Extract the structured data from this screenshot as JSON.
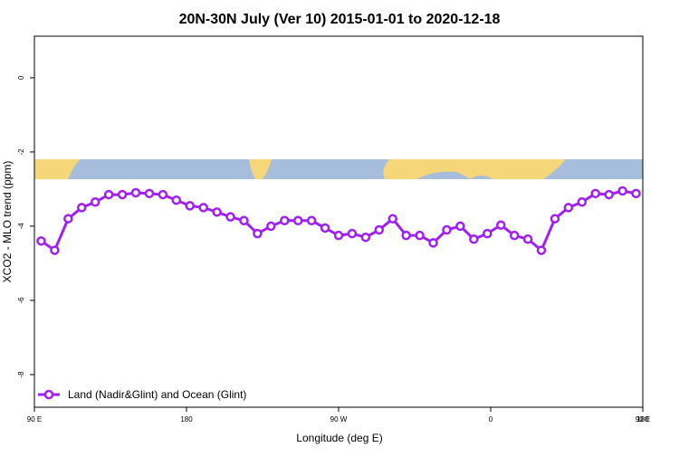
{
  "chart_data": {
    "type": "line",
    "title": "20N-30N July (Ver 10)   2015-01-01 to 2020-12-18",
    "x_label": "Longitude (deg E)",
    "y_label": "XCO2 - MLO trend (ppm)",
    "x": [
      94,
      102,
      110,
      118,
      126,
      134,
      142,
      150,
      158,
      166,
      174,
      182,
      190,
      198,
      206,
      214,
      222,
      230,
      238,
      246,
      254,
      262,
      270,
      278,
      286,
      294,
      302,
      310,
      318,
      326,
      334,
      342,
      350,
      358,
      366,
      374,
      382,
      390,
      398,
      406,
      414,
      422,
      430,
      438,
      446
    ],
    "series": [
      {
        "name": "Land (Nadir&Glint) and Ocean (Glint)",
        "color": "#a020f0",
        "values": [
          -4.4,
          -4.65,
          -3.8,
          -3.5,
          -3.35,
          -3.15,
          -3.15,
          -3.1,
          -3.12,
          -3.15,
          -3.3,
          -3.45,
          -3.5,
          -3.62,
          -3.75,
          -3.85,
          -4.2,
          -4.0,
          -3.85,
          -3.85,
          -3.85,
          -4.05,
          -4.25,
          -4.2,
          -4.3,
          -4.1,
          -3.8,
          -4.25,
          -4.25,
          -4.45,
          -4.1,
          -4.0,
          -4.35,
          -4.2,
          -3.97,
          -4.25,
          -4.35,
          -4.65,
          -3.8,
          -3.5,
          -3.35,
          -3.12,
          -3.15,
          -3.05,
          -3.12
        ]
      }
    ],
    "xlim": [
      90,
      450
    ],
    "xticks": [
      {
        "value": 90,
        "label": "90 E"
      },
      180,
      {
        "value": 270,
        "label": "90 W"
      },
      {
        "value": 360,
        "label": "0"
      },
      {
        "value": 450,
        "label": "90 E"
      },
      {
        "value": 540,
        "label": "180"
      }
    ],
    "ylim": [
      -8.88,
      1.12
    ],
    "yticks": [
      0,
      -2,
      -4,
      -6,
      -8
    ],
    "legend": "bottom-left"
  }
}
